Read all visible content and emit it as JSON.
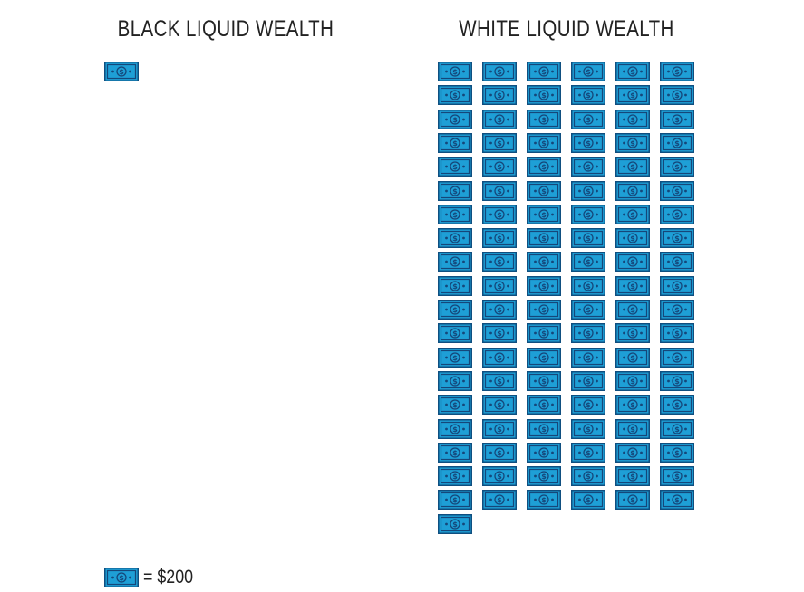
{
  "chart_data": {
    "type": "pictograph",
    "unit_value": 200,
    "unit_currency": "$",
    "icon": "dollar-bill-icon",
    "series": [
      {
        "title": "BLACK LIQUID WEALTH",
        "icons": 1,
        "columns": 6
      },
      {
        "title": "WHITE LIQUID WEALTH",
        "icons": 115,
        "columns": 6
      }
    ],
    "legend": {
      "label": "= $200"
    }
  },
  "colors": {
    "bill_fill": "#1e9fd6",
    "bill_border": "#0f4f80",
    "bill_dark": "#15477a",
    "text": "#222222",
    "background": "#ffffff"
  }
}
